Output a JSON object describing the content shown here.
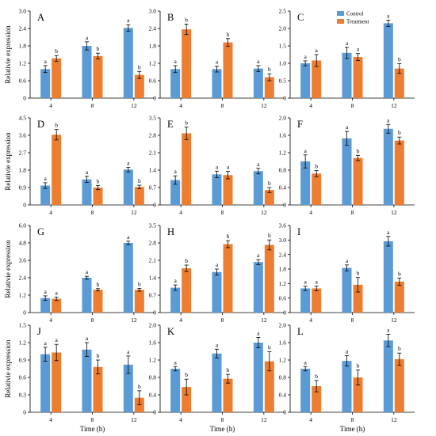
{
  "figure": {
    "ylabel": "Relativie expression",
    "xlabel": "Time (h)",
    "categories": [
      "4",
      "8",
      "12"
    ],
    "legend": [
      {
        "label": "Control",
        "color": "#5b9bd5"
      },
      {
        "label": "Treatment",
        "color": "#ed7d31"
      }
    ]
  },
  "chart_data": [
    {
      "type": "bar",
      "label": "A",
      "categories": [
        "4",
        "8",
        "12"
      ],
      "ylim": [
        0,
        3.0
      ],
      "yticks": [
        "0",
        "0.6",
        "1.2",
        "1.8",
        "2.4",
        "3.0"
      ],
      "ylabel": "Relativie expression",
      "xlabel": "",
      "series": [
        {
          "name": "Control",
          "values": [
            1.0,
            1.8,
            2.42
          ],
          "errors": [
            0.12,
            0.14,
            0.11
          ],
          "letters": [
            "a",
            "a",
            "a"
          ]
        },
        {
          "name": "Treatment",
          "values": [
            1.37,
            1.45,
            0.8
          ],
          "errors": [
            0.1,
            0.1,
            0.12
          ],
          "letters": [
            "b",
            "b",
            "b"
          ]
        }
      ]
    },
    {
      "type": "bar",
      "label": "B",
      "categories": [
        "4",
        "8",
        "12"
      ],
      "ylim": [
        0,
        3.0
      ],
      "yticks": [
        "0",
        "0.6",
        "1.2",
        "1.8",
        "2.4",
        "3.0"
      ],
      "ylabel": "",
      "xlabel": "",
      "series": [
        {
          "name": "Control",
          "values": [
            1.0,
            1.0,
            1.02
          ],
          "errors": [
            0.12,
            0.1,
            0.1
          ],
          "letters": [
            "a",
            "a",
            "a"
          ]
        },
        {
          "name": "Treatment",
          "values": [
            2.37,
            1.92,
            0.72
          ],
          "errors": [
            0.18,
            0.13,
            0.12
          ],
          "letters": [
            "b",
            "b",
            "b"
          ]
        }
      ]
    },
    {
      "type": "bar",
      "label": "C",
      "categories": [
        "4",
        "8",
        "12"
      ],
      "ylim": [
        0,
        2.5
      ],
      "yticks": [
        "0",
        "0.5",
        "1.0",
        "1.5",
        "2.0",
        "2.5"
      ],
      "ylabel": "",
      "xlabel": "",
      "series": [
        {
          "name": "Control",
          "values": [
            1.0,
            1.3,
            2.15
          ],
          "errors": [
            0.07,
            0.16,
            0.09
          ],
          "letters": [
            "a",
            "a",
            "a"
          ]
        },
        {
          "name": "Treatment",
          "values": [
            1.08,
            1.18,
            0.85
          ],
          "errors": [
            0.17,
            0.1,
            0.14
          ],
          "letters": [
            "a",
            "a",
            "b"
          ]
        }
      ]
    },
    {
      "type": "bar",
      "label": "D",
      "categories": [
        "4",
        "8",
        "12"
      ],
      "ylim": [
        0,
        4.5
      ],
      "yticks": [
        "0",
        "0.9",
        "1.8",
        "2.7",
        "3.6",
        "4.5"
      ],
      "ylabel": "Relativie expression",
      "xlabel": "",
      "series": [
        {
          "name": "Control",
          "values": [
            1.0,
            1.32,
            1.83
          ],
          "errors": [
            0.15,
            0.16,
            0.12
          ],
          "letters": [
            "a",
            "a",
            "a"
          ]
        },
        {
          "name": "Treatment",
          "values": [
            3.63,
            0.9,
            0.93
          ],
          "errors": [
            0.27,
            0.11,
            0.09
          ],
          "letters": [
            "b",
            "b",
            "b"
          ]
        }
      ]
    },
    {
      "type": "bar",
      "label": "E",
      "categories": [
        "4",
        "8",
        "12"
      ],
      "ylim": [
        0,
        3.5
      ],
      "yticks": [
        "0",
        "0.7",
        "1.4",
        "2.1",
        "2.8",
        "3.5"
      ],
      "ylabel": "",
      "xlabel": "",
      "series": [
        {
          "name": "Control",
          "values": [
            1.0,
            1.23,
            1.36
          ],
          "errors": [
            0.17,
            0.13,
            0.11
          ],
          "letters": [
            "a",
            "a",
            "a"
          ]
        },
        {
          "name": "Treatment",
          "values": [
            2.88,
            1.2,
            0.6
          ],
          "errors": [
            0.25,
            0.15,
            0.1
          ],
          "letters": [
            "b",
            "a",
            "b"
          ]
        }
      ]
    },
    {
      "type": "bar",
      "label": "F",
      "categories": [
        "4",
        "8",
        "12"
      ],
      "ylim": [
        0,
        2.0
      ],
      "yticks": [
        "0",
        "0.4",
        "0.8",
        "1.2",
        "1.6",
        "2.0"
      ],
      "ylabel": "",
      "xlabel": "",
      "series": [
        {
          "name": "Control",
          "values": [
            1.0,
            1.53,
            1.75
          ],
          "errors": [
            0.15,
            0.16,
            0.1
          ],
          "letters": [
            "a",
            "a",
            "a"
          ]
        },
        {
          "name": "Treatment",
          "values": [
            0.72,
            1.08,
            1.48
          ],
          "errors": [
            0.07,
            0.06,
            0.08
          ],
          "letters": [
            "b",
            "b",
            "b"
          ]
        }
      ]
    },
    {
      "type": "bar",
      "label": "G",
      "categories": [
        "4",
        "8",
        "12"
      ],
      "ylim": [
        0,
        6.0
      ],
      "yticks": [
        "0",
        "1.2",
        "2.4",
        "3.6",
        "4.8",
        "6.0"
      ],
      "ylabel": "Relativie expression",
      "xlabel": "",
      "series": [
        {
          "name": "Control",
          "values": [
            1.0,
            2.4,
            4.8
          ],
          "errors": [
            0.15,
            0.1,
            0.12
          ],
          "letters": [
            "a",
            "a",
            "a"
          ]
        },
        {
          "name": "Treatment",
          "values": [
            0.95,
            1.57,
            1.57
          ],
          "errors": [
            0.12,
            0.08,
            0.1
          ],
          "letters": [
            "a",
            "b",
            "b"
          ]
        }
      ]
    },
    {
      "type": "bar",
      "label": "H",
      "categories": [
        "4",
        "8",
        "12"
      ],
      "ylim": [
        0,
        3.5
      ],
      "yticks": [
        "0",
        "0.7",
        "1.4",
        "2.1",
        "2.8",
        "3.5"
      ],
      "ylabel": "",
      "xlabel": "",
      "series": [
        {
          "name": "Control",
          "values": [
            1.0,
            1.63,
            2.03
          ],
          "errors": [
            0.11,
            0.12,
            0.1
          ],
          "letters": [
            "a",
            "a",
            "a"
          ]
        },
        {
          "name": "Treatment",
          "values": [
            1.78,
            2.75,
            2.72
          ],
          "errors": [
            0.13,
            0.14,
            0.2
          ],
          "letters": [
            "b",
            "b",
            "b"
          ]
        }
      ]
    },
    {
      "type": "bar",
      "label": "I",
      "categories": [
        "4",
        "8",
        "12"
      ],
      "ylim": [
        0,
        3.6
      ],
      "yticks": [
        "0",
        "0.6",
        "1.2",
        "1.8",
        "2.4",
        "3.0",
        "3.6"
      ],
      "ylabel": "",
      "xlabel": "",
      "series": [
        {
          "name": "Control",
          "values": [
            1.0,
            1.85,
            2.95
          ],
          "errors": [
            0.09,
            0.12,
            0.2
          ],
          "letters": [
            "a",
            "a",
            "a"
          ]
        },
        {
          "name": "Treatment",
          "values": [
            1.0,
            1.15,
            1.28
          ],
          "errors": [
            0.1,
            0.3,
            0.15
          ],
          "letters": [
            "a",
            "b",
            "b"
          ]
        }
      ]
    },
    {
      "type": "bar",
      "label": "J",
      "categories": [
        "4",
        "8",
        "12"
      ],
      "ylim": [
        0,
        1.5
      ],
      "yticks": [
        "0",
        "0.3",
        "0.6",
        "0.9",
        "1.2",
        "1.5"
      ],
      "ylabel": "Relativie expression",
      "xlabel": "Time (h)",
      "series": [
        {
          "name": "Control",
          "values": [
            1.0,
            1.08,
            0.82
          ],
          "errors": [
            0.12,
            0.12,
            0.15
          ],
          "letters": [
            "a",
            "a",
            "a"
          ]
        },
        {
          "name": "Treatment",
          "values": [
            1.03,
            0.78,
            0.25
          ],
          "errors": [
            0.14,
            0.12,
            0.12
          ],
          "letters": [
            "a",
            "b",
            "b"
          ]
        }
      ]
    },
    {
      "type": "bar",
      "label": "K",
      "categories": [
        "4",
        "8",
        "12"
      ],
      "ylim": [
        0,
        2.0
      ],
      "yticks": [
        "0",
        "0.4",
        "0.8",
        "1.2",
        "1.6",
        "2.0"
      ],
      "ylabel": "",
      "xlabel": "Time (h)",
      "series": [
        {
          "name": "Control",
          "values": [
            1.0,
            1.35,
            1.6
          ],
          "errors": [
            0.05,
            0.1,
            0.12
          ],
          "letters": [
            "a",
            "a",
            "a"
          ]
        },
        {
          "name": "Treatment",
          "values": [
            0.58,
            0.77,
            1.17
          ],
          "errors": [
            0.18,
            0.1,
            0.22
          ],
          "letters": [
            "b",
            "b",
            "b"
          ]
        }
      ]
    },
    {
      "type": "bar",
      "label": "L",
      "categories": [
        "4",
        "8",
        "12"
      ],
      "ylim": [
        0,
        2.0
      ],
      "yticks": [
        "0",
        "0.4",
        "0.8",
        "1.2",
        "1.6",
        "2.0"
      ],
      "ylabel": "",
      "xlabel": "Time (h)",
      "series": [
        {
          "name": "Control",
          "values": [
            1.0,
            1.18,
            1.65
          ],
          "errors": [
            0.05,
            0.12,
            0.14
          ],
          "letters": [
            "a",
            "a",
            "a"
          ]
        },
        {
          "name": "Treatment",
          "values": [
            0.6,
            0.8,
            1.22
          ],
          "errors": [
            0.13,
            0.17,
            0.14
          ],
          "letters": [
            "b",
            "b",
            "b"
          ]
        }
      ]
    }
  ]
}
